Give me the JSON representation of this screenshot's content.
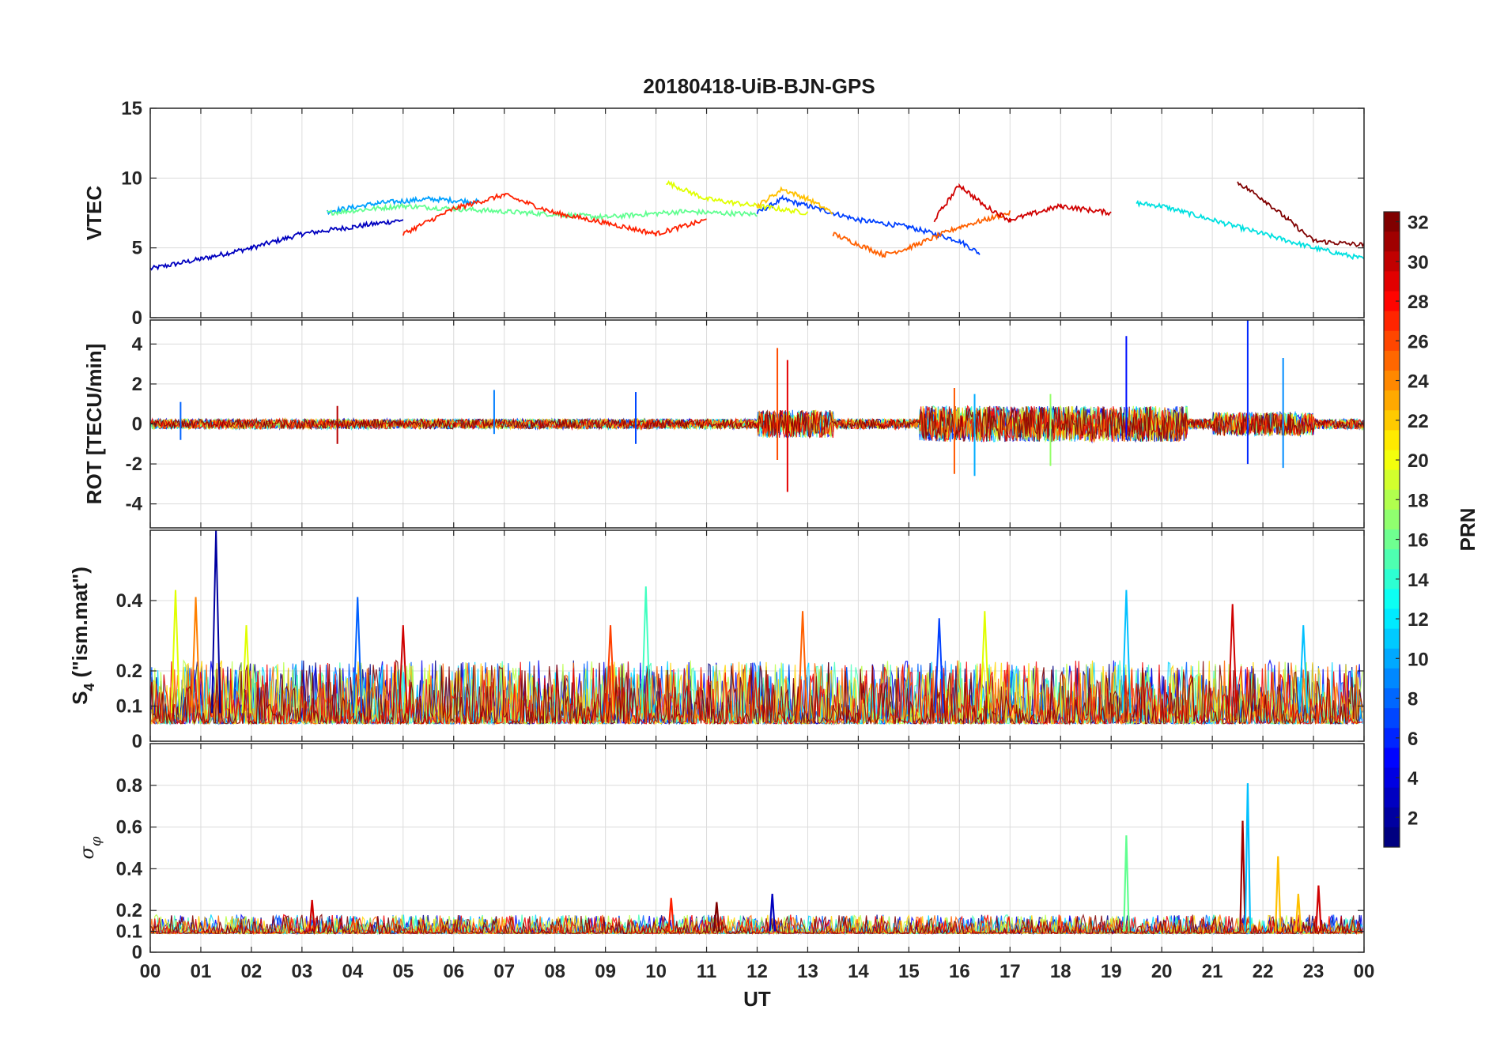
{
  "chart_data": [
    {
      "type": "line",
      "title": "20180418-UiB-BJN-GPS",
      "ylabel": "VTEC",
      "ylim": [
        0,
        15
      ],
      "yticks": [
        "0",
        "5",
        "10",
        "15"
      ],
      "xlim": [
        0,
        24
      ],
      "grid": true,
      "series_note": "PRN 1-32, multiple colored lines",
      "series": [
        {
          "name": "PRN 2",
          "color": "#0000bf",
          "x": [
            0,
            1,
            2,
            3,
            4,
            5
          ],
          "y": [
            3.5,
            4.2,
            5.0,
            6.0,
            6.5,
            7.0
          ]
        },
        {
          "name": "PRN 5",
          "color": "#0040ff",
          "x": [
            12,
            12.5,
            13,
            14,
            15,
            16,
            16.4
          ],
          "y": [
            7.5,
            8.5,
            8.0,
            7.0,
            6.5,
            5.5,
            4.6
          ]
        },
        {
          "name": "PRN 10",
          "color": "#00a0ff",
          "x": [
            3.5,
            4.5,
            5.5,
            6.5
          ],
          "y": [
            7.6,
            8.2,
            8.5,
            8.3
          ]
        },
        {
          "name": "PRN 12",
          "color": "#00e0e0",
          "x": [
            19.5,
            20,
            21,
            22,
            23,
            24
          ],
          "y": [
            8.2,
            8.0,
            7.0,
            6.0,
            5.0,
            4.2
          ]
        },
        {
          "name": "PRN 16",
          "color": "#60ff90",
          "x": [
            3.5,
            5,
            6,
            7.5,
            9,
            10.5,
            12
          ],
          "y": [
            7.5,
            8.0,
            7.8,
            7.5,
            7.2,
            7.6,
            7.4
          ]
        },
        {
          "name": "PRN 20",
          "color": "#e0ff00",
          "x": [
            10.2,
            11,
            12,
            13
          ],
          "y": [
            9.7,
            8.5,
            8.0,
            7.5
          ]
        },
        {
          "name": "PRN 22",
          "color": "#ffc000",
          "x": [
            12,
            12.5,
            13,
            13.5
          ],
          "y": [
            8.0,
            9.2,
            8.5,
            7.5
          ]
        },
        {
          "name": "PRN 25",
          "color": "#ff6000",
          "x": [
            13.5,
            14.5,
            15,
            16,
            17
          ],
          "y": [
            6.0,
            4.5,
            5.0,
            6.5,
            7.5
          ]
        },
        {
          "name": "PRN 27",
          "color": "#ff2000",
          "x": [
            5,
            6,
            7,
            8,
            9,
            10,
            11
          ],
          "y": [
            6.0,
            7.8,
            8.8,
            7.5,
            6.8,
            6.0,
            7.0
          ]
        },
        {
          "name": "PRN 29",
          "color": "#d00000",
          "x": [
            15.5,
            16,
            16.5,
            17,
            18,
            19
          ],
          "y": [
            7.0,
            9.5,
            8.0,
            7.0,
            8.0,
            7.5
          ]
        },
        {
          "name": "PRN 32",
          "color": "#800000",
          "x": [
            21.5,
            22,
            22.5,
            23,
            24
          ],
          "y": [
            9.7,
            8.5,
            7.0,
            5.5,
            5.2
          ]
        }
      ]
    },
    {
      "type": "line",
      "ylabel": "ROT [TECU/min]",
      "ylim": [
        -5.2,
        5.2
      ],
      "yticks": [
        "-4",
        "-2",
        "0",
        "2",
        "4"
      ],
      "xlim": [
        0,
        24
      ],
      "grid": true,
      "bursts": [
        {
          "x": 0.6,
          "up": 1.1,
          "down": -0.8
        },
        {
          "x": 3.7,
          "up": 0.9,
          "down": -1.0
        },
        {
          "x": 6.8,
          "up": 1.7,
          "down": -0.5
        },
        {
          "x": 9.6,
          "up": 1.6,
          "down": -1.0
        },
        {
          "x": 12.4,
          "up": 3.8,
          "down": -1.8
        },
        {
          "x": 12.6,
          "up": 3.2,
          "down": -3.4
        },
        {
          "x": 15.9,
          "up": 1.8,
          "down": -2.5
        },
        {
          "x": 16.3,
          "up": 1.5,
          "down": -2.6
        },
        {
          "x": 17.8,
          "up": 1.5,
          "down": -2.1
        },
        {
          "x": 19.3,
          "up": 4.4,
          "down": -0.8
        },
        {
          "x": 21.7,
          "up": 5.3,
          "down": -2.0
        },
        {
          "x": 22.4,
          "up": 3.3,
          "down": -2.2
        }
      ]
    },
    {
      "type": "line",
      "ylabel": "S4 (\"ism.mat\")",
      "ylabel_main": "S",
      "ylabel_sub": "4",
      "ylabel_rest": " (\"ism.mat\")",
      "ylim": [
        0,
        0.6
      ],
      "yticks": [
        "0",
        "0.1",
        "0.2",
        "0.4"
      ],
      "xlim": [
        0,
        24
      ],
      "grid": true,
      "peaks": [
        {
          "x": 0.5,
          "y": 0.43,
          "color": "#e0ff00"
        },
        {
          "x": 0.9,
          "y": 0.41,
          "color": "#ff8000"
        },
        {
          "x": 1.3,
          "y": 0.6,
          "color": "#0000a0"
        },
        {
          "x": 1.9,
          "y": 0.33,
          "color": "#e0ff00"
        },
        {
          "x": 4.1,
          "y": 0.41,
          "color": "#0060ff"
        },
        {
          "x": 5.0,
          "y": 0.33,
          "color": "#d00000"
        },
        {
          "x": 9.1,
          "y": 0.33,
          "color": "#ff4000"
        },
        {
          "x": 9.8,
          "y": 0.44,
          "color": "#40ffc0"
        },
        {
          "x": 12.9,
          "y": 0.37,
          "color": "#ff6000"
        },
        {
          "x": 15.6,
          "y": 0.35,
          "color": "#0040ff"
        },
        {
          "x": 16.5,
          "y": 0.37,
          "color": "#e0ff00"
        },
        {
          "x": 19.3,
          "y": 0.43,
          "color": "#00c0ff"
        },
        {
          "x": 21.4,
          "y": 0.39,
          "color": "#d00000"
        },
        {
          "x": 22.8,
          "y": 0.33,
          "color": "#00c0ff"
        }
      ]
    },
    {
      "type": "line",
      "ylabel": "σφ",
      "ylabel_main": "σ",
      "ylabel_sub": "φ",
      "ylim": [
        0,
        1
      ],
      "yticks": [
        "0",
        "0.1",
        "0.2",
        "0.4",
        "0.6",
        "0.8"
      ],
      "xlabel": "UT",
      "xlim": [
        0,
        24
      ],
      "xticks": [
        "00",
        "01",
        "02",
        "03",
        "04",
        "05",
        "06",
        "07",
        "08",
        "09",
        "10",
        "11",
        "12",
        "13",
        "14",
        "15",
        "16",
        "17",
        "18",
        "19",
        "20",
        "21",
        "22",
        "23",
        "00"
      ],
      "grid": true,
      "peaks": [
        {
          "x": 3.2,
          "y": 0.25,
          "color": "#d00000"
        },
        {
          "x": 10.3,
          "y": 0.26,
          "color": "#ff2000"
        },
        {
          "x": 11.2,
          "y": 0.24,
          "color": "#800000"
        },
        {
          "x": 12.3,
          "y": 0.28,
          "color": "#0000bf"
        },
        {
          "x": 19.3,
          "y": 0.56,
          "color": "#60ff90"
        },
        {
          "x": 21.6,
          "y": 0.63,
          "color": "#a00000"
        },
        {
          "x": 21.7,
          "y": 0.81,
          "color": "#00c0ff"
        },
        {
          "x": 22.3,
          "y": 0.46,
          "color": "#ffc000"
        },
        {
          "x": 22.7,
          "y": 0.28,
          "color": "#ffc000"
        },
        {
          "x": 23.1,
          "y": 0.32,
          "color": "#d00000"
        }
      ]
    }
  ],
  "colorbar": {
    "label": "PRN",
    "range": [
      1,
      32
    ],
    "ticks": [
      "2",
      "4",
      "6",
      "8",
      "10",
      "12",
      "14",
      "16",
      "18",
      "20",
      "22",
      "24",
      "26",
      "28",
      "30",
      "32"
    ],
    "colormap": "jet"
  }
}
